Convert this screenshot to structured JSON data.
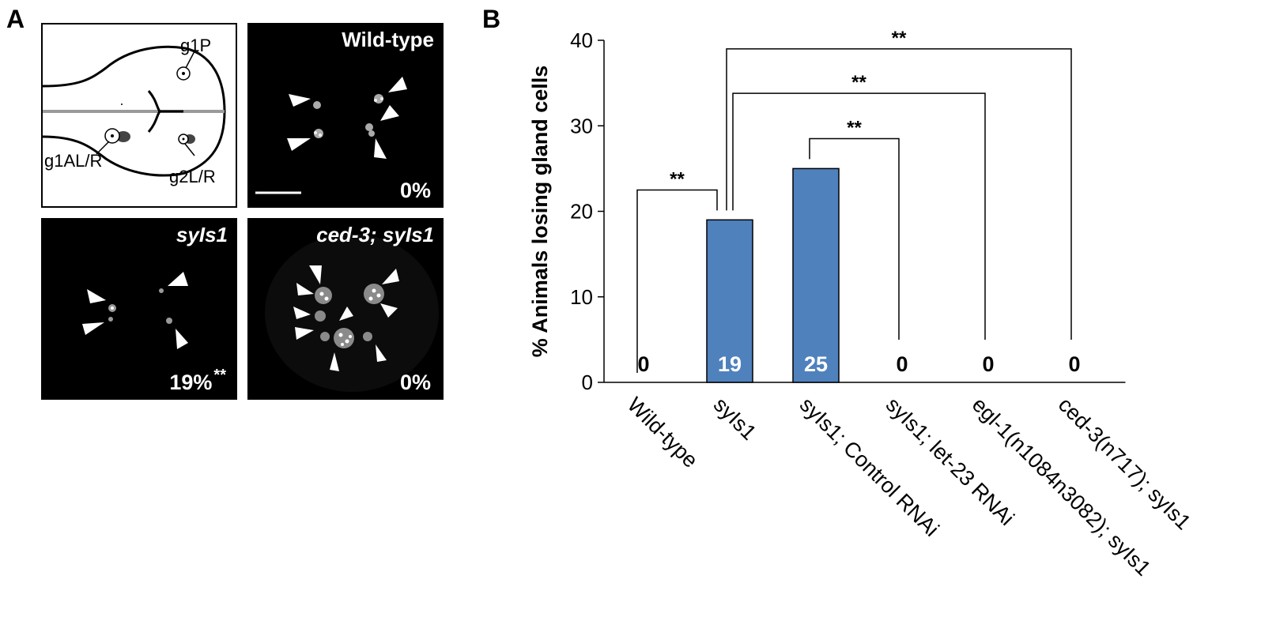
{
  "panel_a": {
    "letter": "A",
    "schematic_labels": [
      "g1P",
      "g1AL/R",
      "g2L/R"
    ],
    "panels": [
      {
        "title": "Wild-type",
        "title_italic": false,
        "percent": "0%",
        "sig": ""
      },
      {
        "title": "syIs1",
        "title_italic": true,
        "percent": "19%",
        "sig": "**"
      },
      {
        "title": "ced-3; syIs1",
        "title_italic": true,
        "percent": "0%",
        "sig": ""
      }
    ]
  },
  "panel_b": {
    "letter": "B"
  },
  "chart_data": {
    "type": "bar",
    "ylabel": "% Animals losing gland cells",
    "xlabel": "",
    "ylim": [
      0,
      40
    ],
    "yticks": [
      0,
      10,
      20,
      30,
      40
    ],
    "categories": [
      "Wild-type",
      "syIs1",
      "syIs1; Control RNAi",
      "syIs1; let-23 RNAi",
      "egl-1(n1084n3082); syIs1",
      "ced-3(n717); syIs1"
    ],
    "values": [
      0,
      19,
      25,
      0,
      0,
      0
    ],
    "value_labels": [
      "0",
      "19",
      "25",
      "0",
      "0",
      "0"
    ],
    "bar_color": "#4f81bd",
    "grid": false,
    "significance": [
      {
        "from": 0,
        "to": 1,
        "label": "**"
      },
      {
        "from": 2,
        "to": 3,
        "label": "**"
      },
      {
        "from": 1,
        "to": 4,
        "label": "**"
      },
      {
        "from": 1,
        "to": 5,
        "label": "**"
      }
    ]
  }
}
